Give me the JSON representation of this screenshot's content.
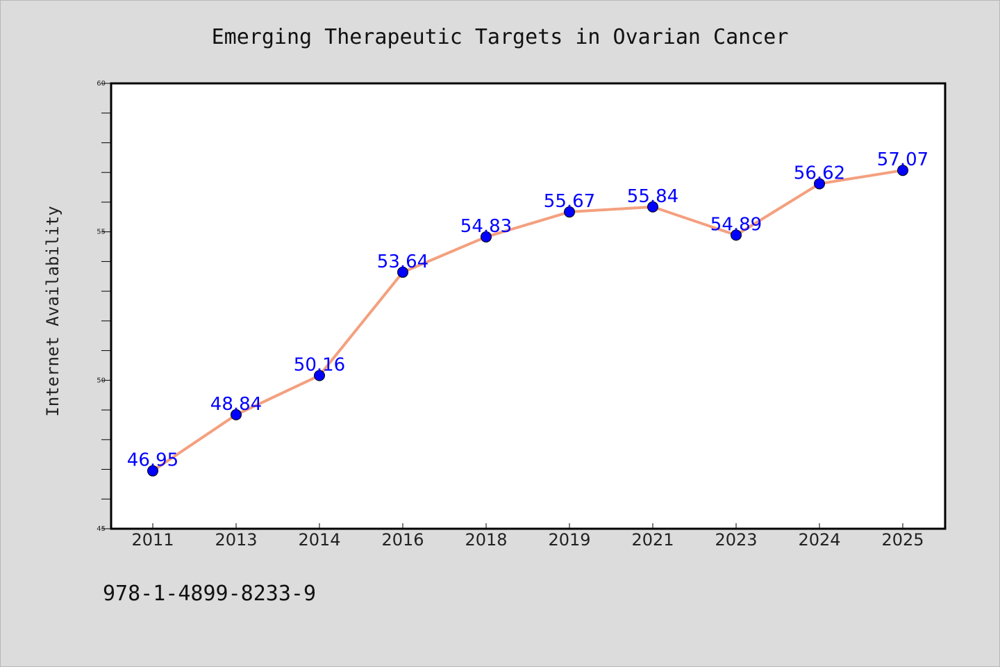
{
  "chart_data": {
    "type": "line",
    "title": "Emerging Therapeutic Targets in Ovarian Cancer",
    "xlabel": "",
    "ylabel": "Internet Availability",
    "categories": [
      "2011",
      "2013",
      "2014",
      "2016",
      "2018",
      "2019",
      "2021",
      "2023",
      "2024",
      "2025"
    ],
    "series": [
      {
        "values": [
          46.95,
          48.84,
          50.16,
          53.64,
          54.83,
          55.67,
          55.84,
          54.89,
          56.62,
          57.07
        ],
        "labels": [
          "46.95",
          "48.84",
          "50.16",
          "53.64",
          "54.83",
          "55.67",
          "55.84",
          "54.89",
          "56.62",
          "57.07"
        ],
        "line_color": "#f4a07f",
        "marker_color": "#0000ff"
      }
    ],
    "ylim": [
      45,
      60
    ],
    "yticks": [
      "45",
      "50",
      "55",
      "60"
    ],
    "grid": false,
    "legend": "none",
    "footer_text": "978-1-4899-8233-9",
    "background_color": "#dcdcdc",
    "plot_background": "#ffffff"
  }
}
